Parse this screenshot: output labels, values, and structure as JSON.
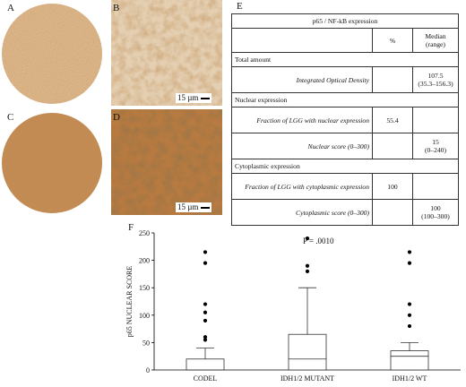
{
  "panels": {
    "a": "A",
    "b": "B",
    "c": "C",
    "d": "D",
    "e": "E",
    "f": "F"
  },
  "scale_b": "15 µm",
  "scale_d": "15 µm",
  "table": {
    "title": "p65 / NF-kB expression",
    "col_pct": "%",
    "col_median": "Median",
    "col_range": "(range)",
    "rows": [
      {
        "type": "section",
        "label": "Total amount"
      },
      {
        "type": "item",
        "label": "Integrated Optical Density",
        "pct": "",
        "median": "107.5",
        "range": "(35.3–156.3)"
      },
      {
        "type": "section",
        "label": "Nuclear expression"
      },
      {
        "type": "item",
        "label": "Fraction of LGG with nuclear expression",
        "pct": "55.4",
        "median": "",
        "range": ""
      },
      {
        "type": "item",
        "label": "Nuclear score (0–300)",
        "pct": "",
        "median": "15",
        "range": "(0–240)"
      },
      {
        "type": "section",
        "label": "Cytoplasmic expression"
      },
      {
        "type": "item",
        "label": "Fraction of LGG with cytoplasmic expression",
        "pct": "100",
        "median": "",
        "range": ""
      },
      {
        "type": "item",
        "label": "Cytoplasmic score (0–300)",
        "pct": "",
        "median": "100",
        "range": "(100–300)"
      }
    ]
  },
  "colors": {
    "stain_light": "#d9b48a",
    "stain_dark": "#9a5a26",
    "box_stroke": "#333333"
  },
  "chart_data": {
    "type": "box",
    "ylabel": "p65 NUCLEAR SCORE",
    "ylim": [
      0,
      250
    ],
    "yticks": [
      0,
      50,
      100,
      150,
      200,
      250
    ],
    "annotation": "P = .0010",
    "categories": [
      "CODEL",
      "IDH1/2 MUTANT",
      "IDH1/2 WT"
    ],
    "boxes": [
      {
        "q1": 0,
        "median": 0,
        "q3": 20,
        "whisker_low": 0,
        "whisker_high": 40,
        "outliers": [
          55,
          60,
          90,
          105,
          120,
          195,
          215
        ]
      },
      {
        "q1": 0,
        "median": 20,
        "q3": 65,
        "whisker_low": 0,
        "whisker_high": 150,
        "outliers": [
          180,
          190,
          240
        ]
      },
      {
        "q1": 0,
        "median": 25,
        "q3": 35,
        "whisker_low": 0,
        "whisker_high": 50,
        "outliers": [
          80,
          100,
          120,
          195,
          215
        ]
      }
    ]
  }
}
